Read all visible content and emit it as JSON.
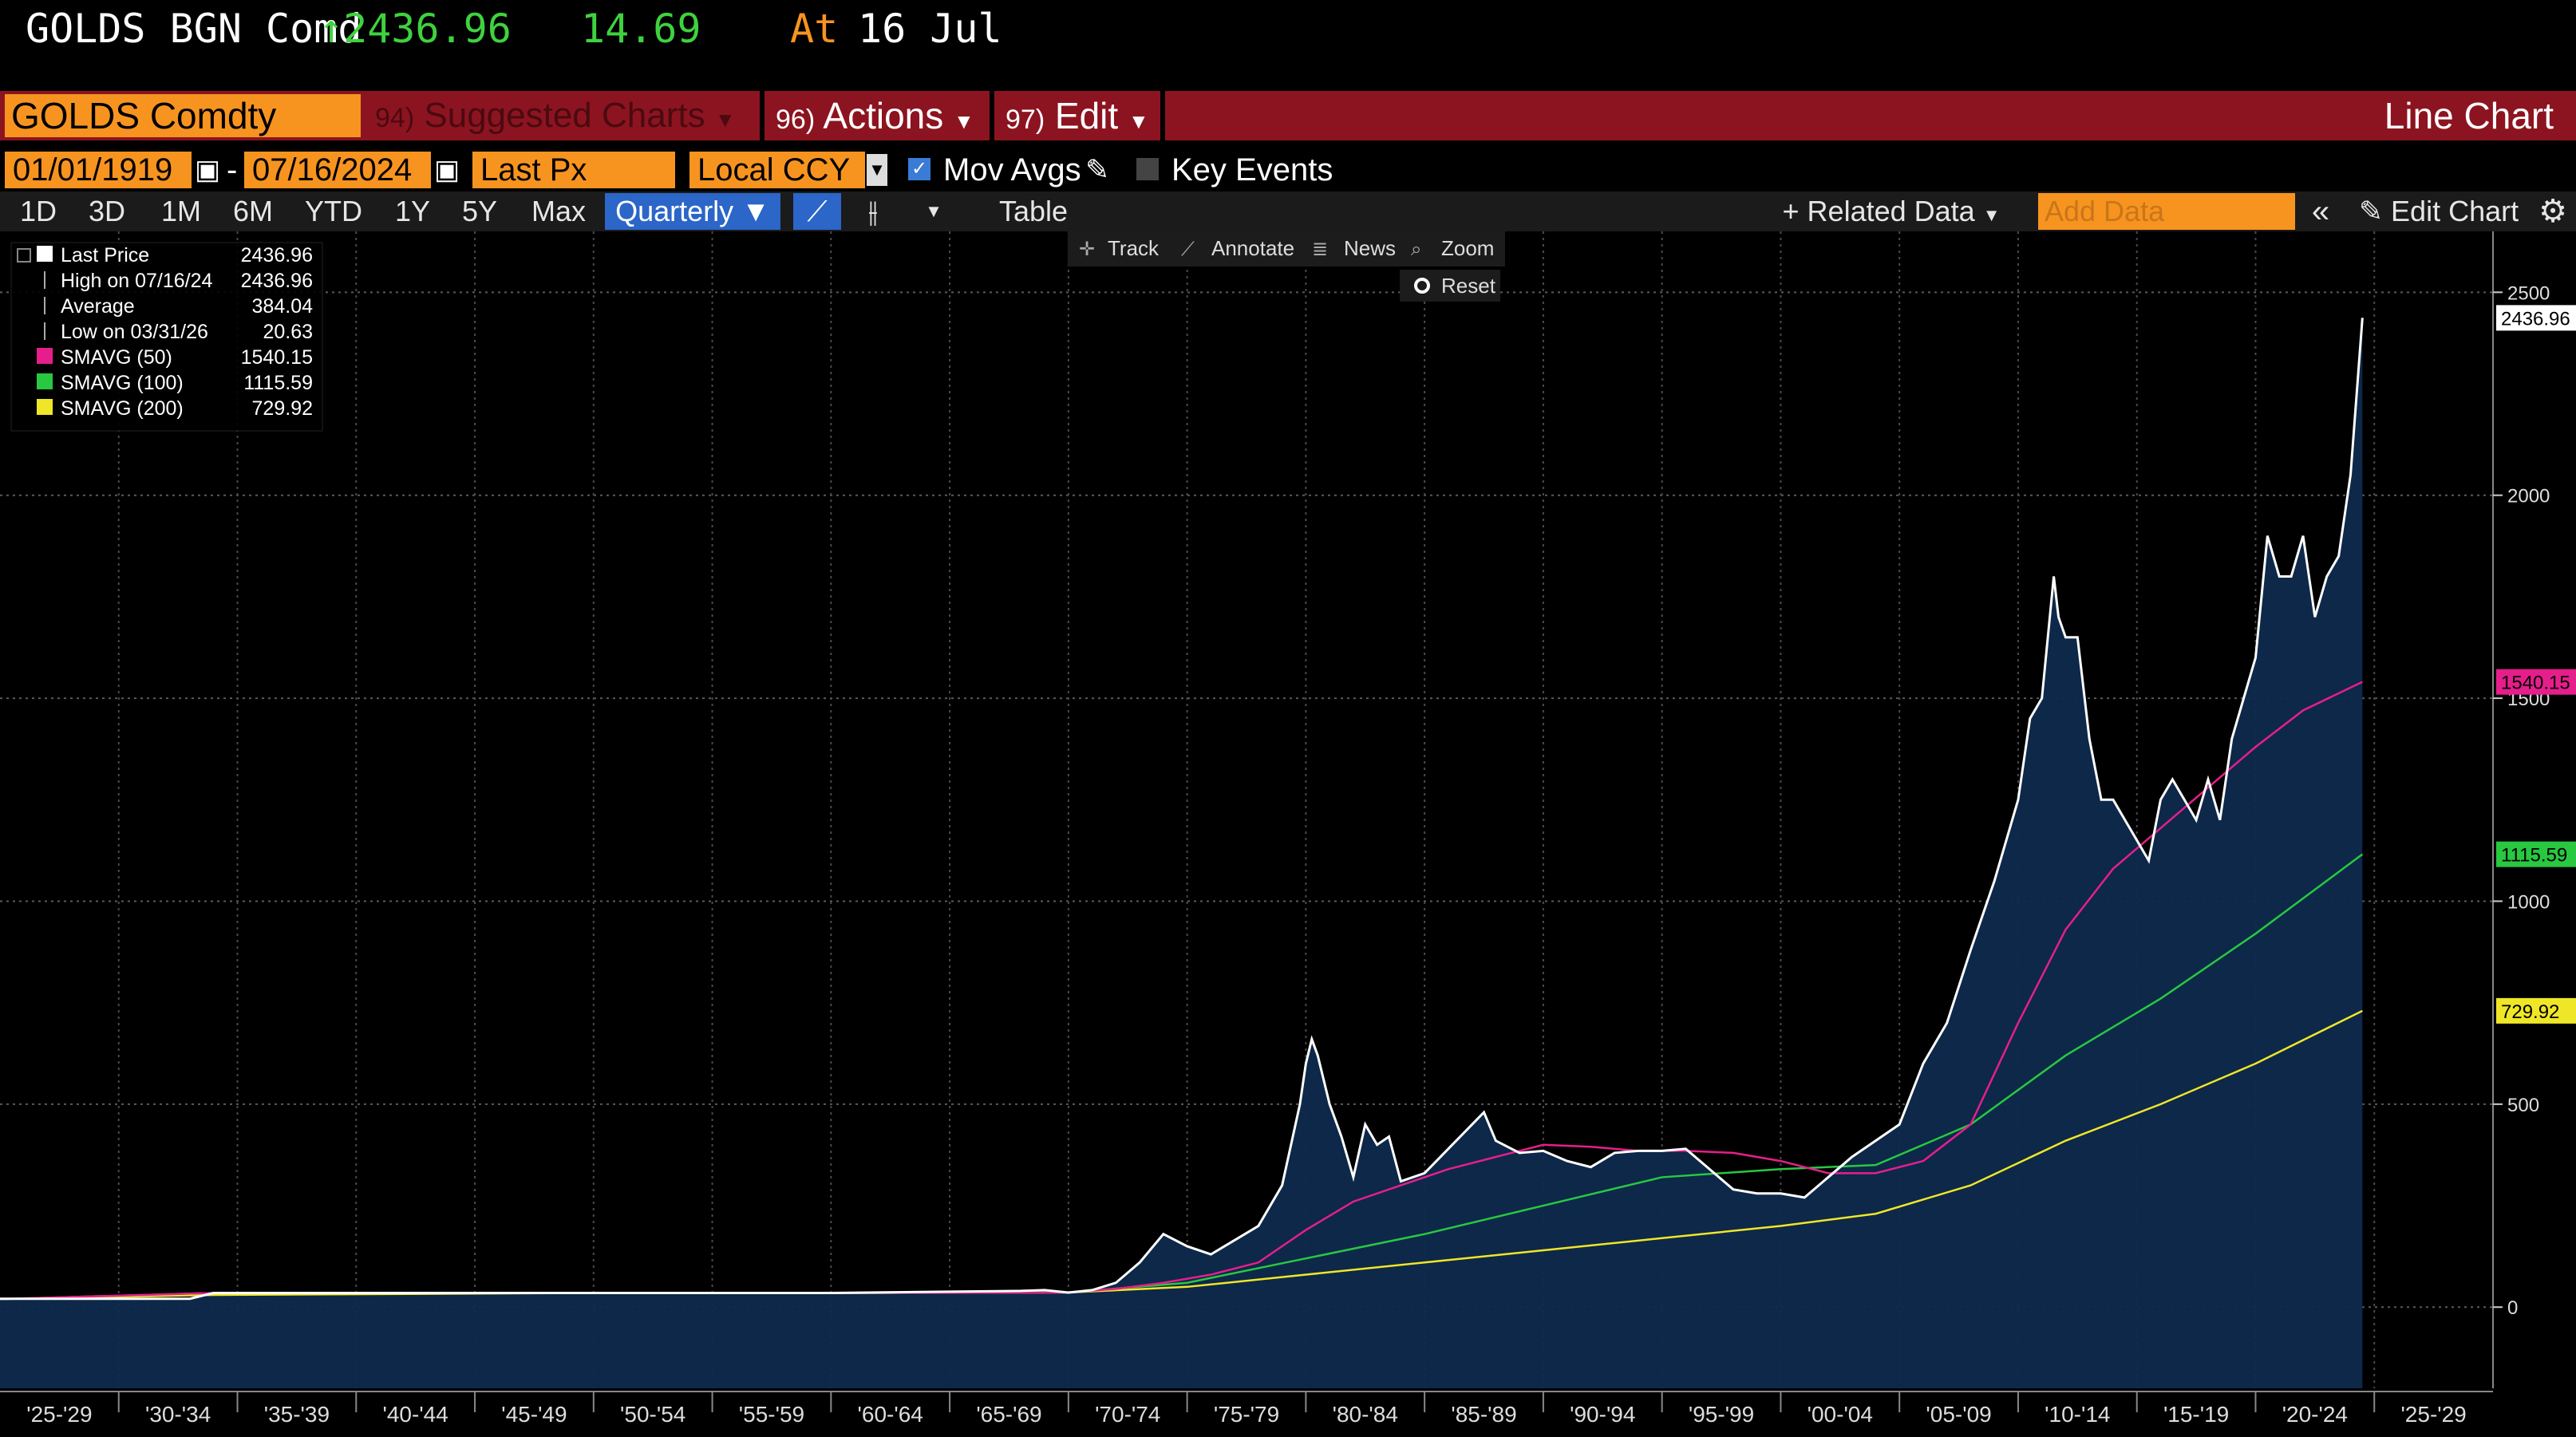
{
  "quote": {
    "ticker": "GOLDS BGN Comd",
    "price": "↑2436.96",
    "change": "14.69",
    "at_label": "At",
    "at_date": "16 Jul"
  },
  "command_bar": {
    "security": "GOLDS Comdty",
    "suggested_num": "94)",
    "suggested": "Suggested Charts",
    "actions_num": "96)",
    "actions": "Actions",
    "edit_num": "97)",
    "edit": "Edit",
    "chart_type": "Line Chart"
  },
  "range": {
    "start_date": "01/01/1919",
    "dash": "-",
    "end_date": "07/16/2024",
    "field": "Last Px",
    "currency": "Local CCY",
    "mov_avgs": "Mov Avgs",
    "key_events": "Key Events"
  },
  "toolbar": {
    "periods": [
      "1D",
      "3D",
      "1M",
      "6M",
      "YTD",
      "1Y",
      "5Y",
      "Max"
    ],
    "frequency": "Quarterly",
    "table": "Table",
    "related": "Related Data",
    "add_data_placeholder": "Add Data",
    "edit_chart": "Edit Chart"
  },
  "chart_tools": {
    "track": "Track",
    "annotate": "Annotate",
    "news": "News",
    "zoom": "Zoom",
    "reset": "Reset"
  },
  "legend": [
    {
      "label": "Last Price",
      "value": "2436.96",
      "color": "#ffffff"
    },
    {
      "label": "High on 07/16/24",
      "value": "2436.96",
      "color": ""
    },
    {
      "label": "Average",
      "value": "384.04",
      "color": ""
    },
    {
      "label": "Low on 03/31/26",
      "value": "20.63",
      "color": ""
    },
    {
      "label": "SMAVG (50)",
      "value": "1540.15",
      "color": "#e61e8c"
    },
    {
      "label": "SMAVG (100)",
      "value": "1115.59",
      "color": "#28c841"
    },
    {
      "label": "SMAVG (200)",
      "value": "729.92",
      "color": "#f0e628"
    }
  ],
  "chart_data": {
    "type": "line",
    "ylim": [
      -200,
      2650
    ],
    "yticks": [
      0,
      500,
      1000,
      1500,
      2000,
      2500
    ],
    "ytick_labels": [
      "0",
      "500",
      "1000",
      "1500",
      "2000",
      "2500"
    ],
    "xlim": [
      1925,
      2030
    ],
    "x_period_labels": [
      "'25-'29",
      "'30-'34",
      "'35-'39",
      "'40-'44",
      "'45-'49",
      "'50-'54",
      "'55-'59",
      "'60-'64",
      "'65-'69",
      "'70-'74",
      "'75-'79",
      "'80-'84",
      "'85-'89",
      "'90-'94",
      "'95-'99",
      "'00-'04",
      "'05-'09",
      "'10-'14",
      "'15-'19",
      "'20-'24",
      "'25-'29"
    ],
    "last_value_tags": [
      {
        "value": "2436.96",
        "y": 2436.96,
        "color": "#ffffff"
      },
      {
        "value": "1540.15",
        "y": 1540.15,
        "color": "#e61e8c"
      },
      {
        "value": "1115.59",
        "y": 1115.59,
        "color": "#28c841"
      },
      {
        "value": "729.92",
        "y": 729.92,
        "color": "#f0e628"
      }
    ],
    "series": [
      {
        "name": "Last Price",
        "color": "#ffffff",
        "x": [
          1925,
          1933,
          1934,
          1940,
          1950,
          1960,
          1968,
          1969,
          1970,
          1971,
          1972,
          1973,
          1974,
          1975,
          1976,
          1977,
          1978,
          1979,
          1979.75,
          1980,
          1980.25,
          1980.5,
          1981,
          1981.5,
          1982,
          1982.5,
          1983,
          1983.5,
          1984,
          1985,
          1986,
          1987,
          1987.5,
          1988,
          1989,
          1990,
          1991,
          1992,
          1993,
          1994,
          1995,
          1996,
          1997,
          1998,
          1999,
          2000,
          2001,
          2002,
          2003,
          2004,
          2005,
          2006,
          2007,
          2008,
          2009,
          2010,
          2010.5,
          2011,
          2011.5,
          2011.7,
          2012,
          2012.5,
          2013,
          2013.5,
          2014,
          2015,
          2015.5,
          2016,
          2016.5,
          2017,
          2017.5,
          2018,
          2018.5,
          2019,
          2019.5,
          2020,
          2020.5,
          2021,
          2021.5,
          2022,
          2022.5,
          2023,
          2023.5,
          2024,
          2024.5
        ],
        "y": [
          20.6,
          20.6,
          35,
          35,
          35,
          35,
          40,
          42,
          36,
          42,
          60,
          110,
          180,
          150,
          130,
          165,
          200,
          300,
          500,
          600,
          660,
          620,
          500,
          420,
          320,
          450,
          400,
          420,
          310,
          330,
          390,
          450,
          480,
          410,
          380,
          385,
          360,
          345,
          380,
          385,
          385,
          390,
          340,
          290,
          280,
          280,
          270,
          320,
          370,
          410,
          450,
          600,
          700,
          880,
          1050,
          1250,
          1450,
          1500,
          1800,
          1700,
          1650,
          1650,
          1400,
          1250,
          1250,
          1150,
          1100,
          1250,
          1300,
          1250,
          1200,
          1300,
          1200,
          1400,
          1500,
          1600,
          1900,
          1800,
          1800,
          1900,
          1700,
          1800,
          1850,
          2050,
          2436.96
        ]
      },
      {
        "name": "SMAVG (50)",
        "color": "#e61e8c",
        "x": [
          1925,
          1934,
          1940,
          1950,
          1960,
          1970,
          1972,
          1974,
          1976,
          1978,
          1980,
          1982,
          1984,
          1986,
          1988,
          1990,
          1992,
          1994,
          1996,
          1998,
          2000,
          2002,
          2004,
          2006,
          2008,
          2010,
          2012,
          2014,
          2016,
          2018,
          2020,
          2022,
          2024.5
        ],
        "y": [
          20,
          35,
          35,
          35,
          35,
          36,
          45,
          60,
          80,
          110,
          190,
          260,
          300,
          340,
          370,
          400,
          395,
          385,
          385,
          380,
          360,
          330,
          330,
          360,
          450,
          700,
          930,
          1080,
          1180,
          1280,
          1380,
          1470,
          1540.15
        ]
      },
      {
        "name": "SMAVG (100)",
        "color": "#28c841",
        "x": [
          1925,
          1934,
          1950,
          1960,
          1970,
          1975,
          1980,
          1985,
          1990,
          1995,
          2000,
          2004,
          2008,
          2012,
          2016,
          2020,
          2024.5
        ],
        "y": [
          20,
          35,
          35,
          35,
          36,
          60,
          120,
          180,
          250,
          320,
          340,
          350,
          450,
          620,
          760,
          920,
          1115.59
        ]
      },
      {
        "name": "SMAVG (200)",
        "color": "#f0e628",
        "x": [
          1925,
          1934,
          1950,
          1960,
          1970,
          1975,
          1980,
          1985,
          1990,
          1995,
          2000,
          2004,
          2008,
          2012,
          2016,
          2020,
          2024.5
        ],
        "y": [
          20,
          30,
          35,
          35,
          36,
          50,
          80,
          110,
          140,
          170,
          200,
          230,
          300,
          410,
          500,
          600,
          729.92
        ]
      }
    ]
  }
}
